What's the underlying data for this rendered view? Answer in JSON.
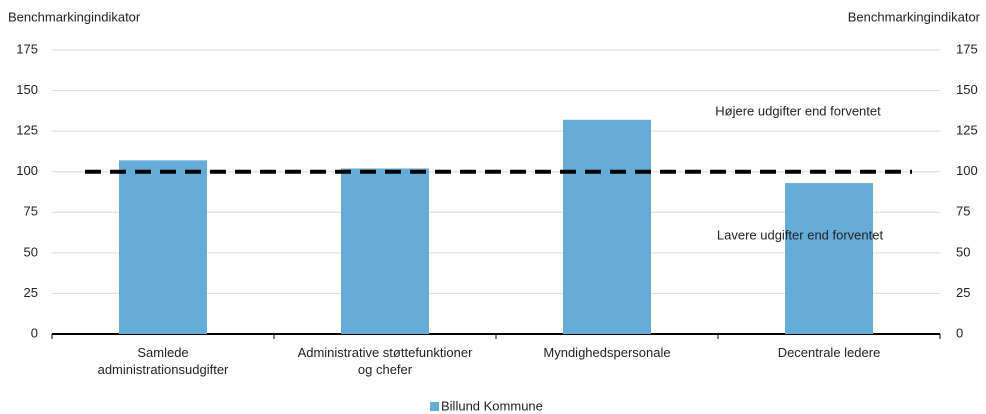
{
  "chart_data": {
    "type": "bar",
    "y_label": "Benchmarkingindikator",
    "y2_label": "Benchmarkingindikator",
    "categories": [
      "Samlede\nadministrationsudgifter",
      "Administrative støttefunktioner\nog chefer",
      "Myndighedspersonale",
      "Decentrale ledere"
    ],
    "series": [
      {
        "name": "Billund Kommune",
        "color": "#65acd9",
        "values": [
          107,
          102,
          132,
          93
        ]
      }
    ],
    "reference_line": 100,
    "annotations": [
      "Højere udgifter end forventet",
      "Lavere udgifter end forventet"
    ],
    "ylim": [
      0,
      175
    ],
    "yticks": [
      0,
      25,
      50,
      75,
      100,
      125,
      150,
      175
    ],
    "y2lim": [
      0,
      175
    ],
    "y2ticks": [
      0,
      25,
      50,
      75,
      100,
      125,
      150,
      175
    ],
    "grid": true,
    "legend": "bottom"
  }
}
